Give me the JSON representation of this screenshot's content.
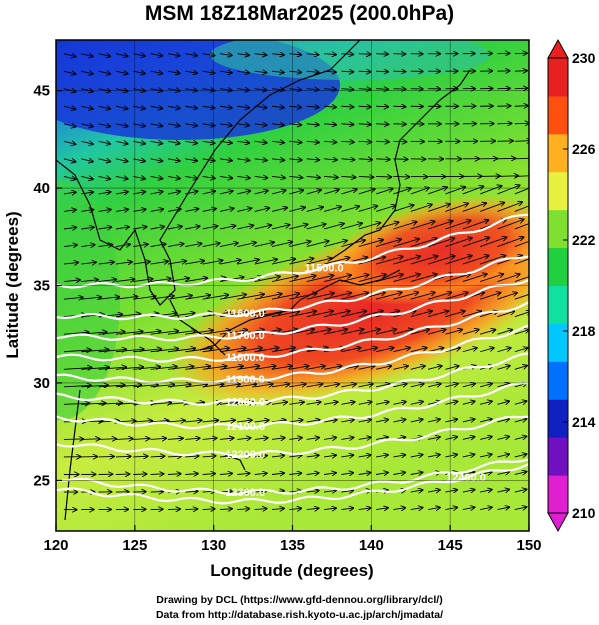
{
  "title": "MSM 18Z18Mar2025 (200.0hPa)",
  "x_axis": {
    "label": "Longitude (degrees)",
    "ticks": [
      "120",
      "125",
      "130",
      "135",
      "140",
      "145",
      "150"
    ]
  },
  "y_axis": {
    "label": "Latitude  (degrees)",
    "ticks": [
      "25",
      "30",
      "35",
      "40",
      "45"
    ]
  },
  "map_extent": {
    "lon": [
      120,
      150
    ],
    "lat": [
      22.4,
      47.6
    ]
  },
  "colorbar": {
    "ticks": [
      "210",
      "214",
      "218",
      "222",
      "226",
      "230"
    ],
    "range": [
      210,
      230
    ],
    "colors": [
      "#e020d0",
      "#7010c0",
      "#1020c0",
      "#0070ff",
      "#00c8ff",
      "#10e0a0",
      "#20d040",
      "#80e030",
      "#e8f040",
      "#ffb020",
      "#ff5010",
      "#e82020"
    ]
  },
  "contours": [
    {
      "label": "11500.0",
      "lat": 36.0,
      "slope": 0.35
    },
    {
      "label": "11600.0",
      "lat": 34.3,
      "slope": 0.3
    },
    {
      "label": "11700.0",
      "lat": 33.2,
      "slope": 0.28
    },
    {
      "label": "11800.0",
      "lat": 32.1,
      "slope": 0.26
    },
    {
      "label": "11900.0",
      "lat": 31.0,
      "slope": 0.24
    },
    {
      "label": "12000.0",
      "lat": 29.9,
      "slope": 0.2
    },
    {
      "label": "12100.0",
      "lat": 28.7,
      "slope": 0.17
    },
    {
      "label": "12200.0",
      "lat": 27.3,
      "slope": 0.14
    },
    {
      "label": "12300.0",
      "lat": 25.4,
      "slope": 0.1
    },
    {
      "label": "12400.0",
      "lat": 24.9,
      "slope": 0.12
    }
  ],
  "credits": {
    "line1": "Drawing by DCL (https://www.gfd-dennou.org/library/dcl/)",
    "line2": "Data from http://database.rish.kyoto-u.ac.jp/arch/jmadata/"
  }
}
